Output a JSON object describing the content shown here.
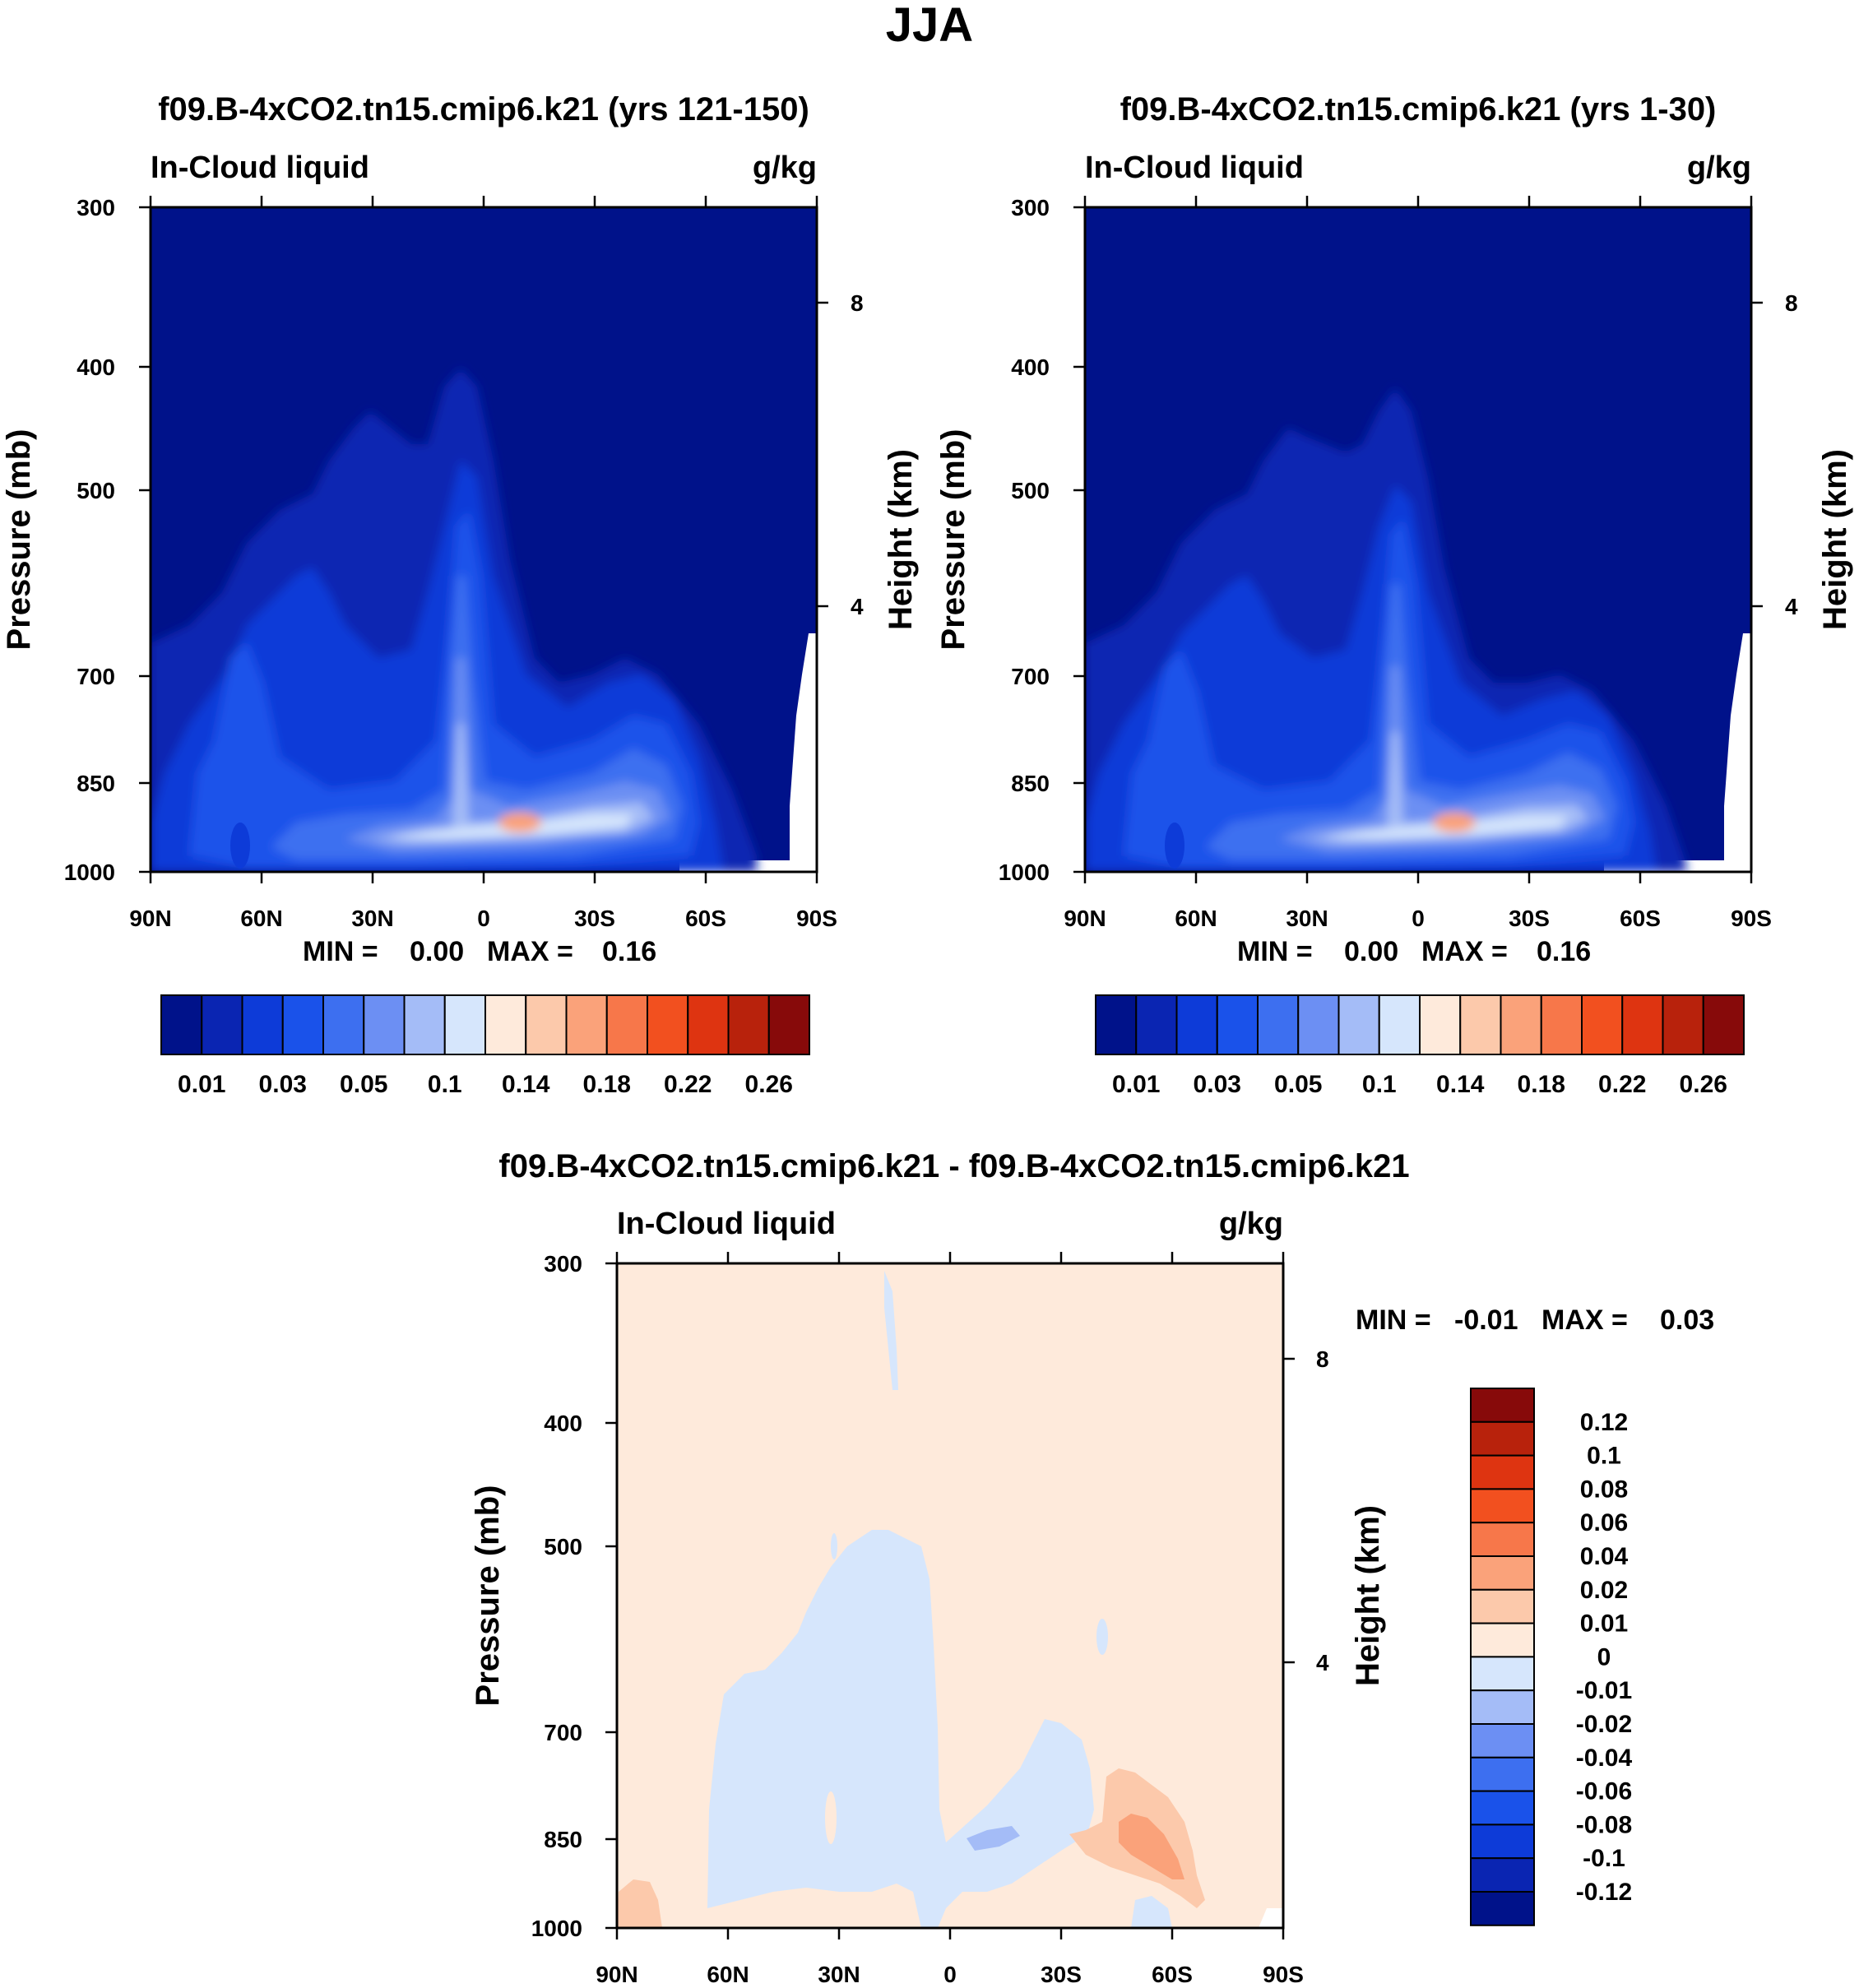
{
  "figure_title": "JJA",
  "chart_data": [
    {
      "type": "heatmap",
      "title": "f09.B-4xCO2.tn15.cmip6.k21 (yrs 121-150)",
      "subtitle_left": "In-Cloud liquid",
      "subtitle_right": "g/kg",
      "xlabel": "",
      "ylabel": "Pressure (mb)",
      "ylabel_right": "Height (km)",
      "x_ticks": [
        "90N",
        "60N",
        "30N",
        "0",
        "30S",
        "60S",
        "90S"
      ],
      "y_ticks": [
        "300",
        "400",
        "500",
        "700",
        "850",
        "1000"
      ],
      "y_ticks_right": [
        "8",
        "4"
      ],
      "stats": {
        "min_label": "MIN =",
        "min_value": "0.00",
        "max_label": "MAX =",
        "max_value": "0.16"
      },
      "colorbar": {
        "orientation": "horizontal",
        "colors": [
          "#00128a",
          "#0a25b2",
          "#0d3bd8",
          "#1a52ea",
          "#3d6ff0",
          "#6c8ff3",
          "#a4bcf7",
          "#d6e6fc",
          "#feeadb",
          "#fcc9ab",
          "#faa27a",
          "#f7774a",
          "#f2501f",
          "#de3411",
          "#b8220c",
          "#870a0a"
        ],
        "labels": [
          "0.01",
          "0.03",
          "0.05",
          "0.1",
          "0.14",
          "0.18",
          "0.22",
          "0.26"
        ]
      }
    },
    {
      "type": "heatmap",
      "title": "f09.B-4xCO2.tn15.cmip6.k21 (yrs 1-30)",
      "subtitle_left": "In-Cloud liquid",
      "subtitle_right": "g/kg",
      "xlabel": "",
      "ylabel": "Pressure (mb)",
      "ylabel_right": "Height (km)",
      "x_ticks": [
        "90N",
        "60N",
        "30N",
        "0",
        "30S",
        "60S",
        "90S"
      ],
      "y_ticks": [
        "300",
        "400",
        "500",
        "700",
        "850",
        "1000"
      ],
      "y_ticks_right": [
        "8",
        "4"
      ],
      "stats": {
        "min_label": "MIN =",
        "min_value": "0.00",
        "max_label": "MAX =",
        "max_value": "0.16"
      },
      "colorbar": {
        "orientation": "horizontal",
        "colors": [
          "#00128a",
          "#0a25b2",
          "#0d3bd8",
          "#1a52ea",
          "#3d6ff0",
          "#6c8ff3",
          "#a4bcf7",
          "#d6e6fc",
          "#feeadb",
          "#fcc9ab",
          "#faa27a",
          "#f7774a",
          "#f2501f",
          "#de3411",
          "#b8220c",
          "#870a0a"
        ],
        "labels": [
          "0.01",
          "0.03",
          "0.05",
          "0.1",
          "0.14",
          "0.18",
          "0.22",
          "0.26"
        ]
      }
    },
    {
      "type": "heatmap",
      "title": "f09.B-4xCO2.tn15.cmip6.k21 - f09.B-4xCO2.tn15.cmip6.k21",
      "subtitle_left": "In-Cloud liquid",
      "subtitle_right": "g/kg",
      "xlabel": "",
      "ylabel": "Pressure (mb)",
      "ylabel_right": "Height (km)",
      "x_ticks": [
        "90N",
        "60N",
        "30N",
        "0",
        "30S",
        "60S",
        "90S"
      ],
      "y_ticks": [
        "300",
        "400",
        "500",
        "700",
        "850",
        "1000"
      ],
      "y_ticks_right": [
        "8",
        "4"
      ],
      "stats": {
        "min_label": "MIN =",
        "min_value": "-0.01",
        "max_label": "MAX =",
        "max_value": "0.03"
      },
      "colorbar": {
        "orientation": "vertical",
        "colors": [
          "#870a0a",
          "#b8220c",
          "#de3411",
          "#f2501f",
          "#f7774a",
          "#faa27a",
          "#fcc9ab",
          "#feeadb",
          "#d6e6fc",
          "#a4bcf7",
          "#6c8ff3",
          "#3d6ff0",
          "#1a52ea",
          "#0d3bd8",
          "#0a25b2",
          "#00128a"
        ],
        "labels": [
          "0.12",
          "0.1",
          "0.08",
          "0.06",
          "0.04",
          "0.02",
          "0.01",
          "0",
          "-0.01",
          "-0.02",
          "-0.04",
          "-0.06",
          "-0.08",
          "-0.1",
          "-0.12"
        ]
      }
    }
  ]
}
